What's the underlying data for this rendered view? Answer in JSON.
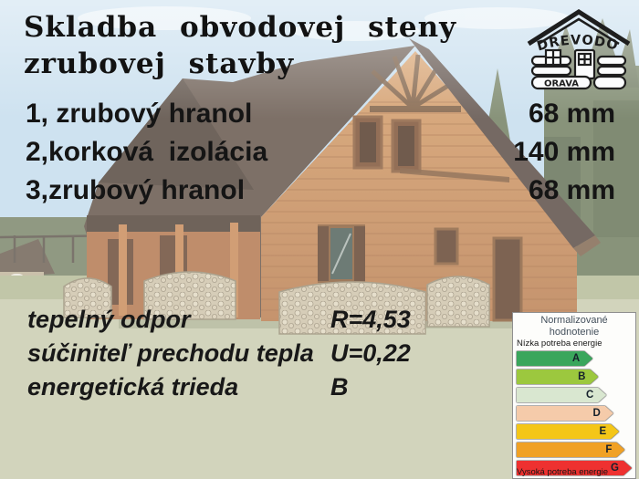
{
  "title": {
    "line1": "Skladba obvodovej steny",
    "line2": "zrubovej stavby"
  },
  "logo": {
    "name": "DREVODOM",
    "subname": "ORAVA"
  },
  "layers": [
    {
      "label": "1, zrubový hranol",
      "value": "68 mm"
    },
    {
      "label": "2,korková  izolácia",
      "value": "140 mm"
    },
    {
      "label": "3,zrubový hranol",
      "value": "68 mm"
    }
  ],
  "specs": [
    {
      "label": "tepelný odpor",
      "value": "R=4,53"
    },
    {
      "label": "súčiniteľ prechodu tepla",
      "value": "U=0,22"
    },
    {
      "label": "energetická trieda",
      "value": "B"
    }
  ],
  "energy_label": {
    "title": "Normalizované hodnotenie",
    "low_note": "Nízka potreba energie",
    "high_note": "Vysoká potreba energie",
    "classes": [
      {
        "letter": "A",
        "color": "#3aa65c",
        "width_pct": 66
      },
      {
        "letter": "B",
        "color": "#9cc83e",
        "width_pct": 71
      },
      {
        "letter": "C",
        "color": "#d9e7d0",
        "width_pct": 78
      },
      {
        "letter": "D",
        "color": "#f5cbaa",
        "width_pct": 84
      },
      {
        "letter": "E",
        "color": "#f4c618",
        "width_pct": 89
      },
      {
        "letter": "F",
        "color": "#f0a125",
        "width_pct": 94
      },
      {
        "letter": "G",
        "color": "#ee3130",
        "width_pct": 100
      }
    ]
  },
  "background_photo": {
    "alt": "zrubový dom - log house with dark roof, firewood stacks and lawn"
  }
}
